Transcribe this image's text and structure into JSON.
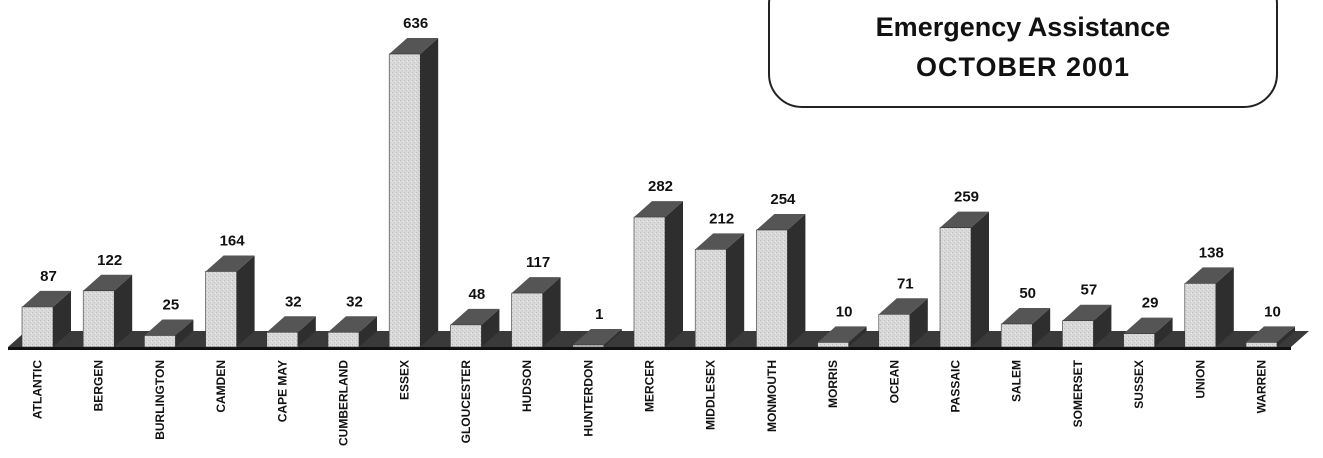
{
  "chart_data": {
    "type": "bar",
    "title": "Emergency Assistance",
    "subtitle": "OCTOBER 2001",
    "categories": [
      "ATLANTIC",
      "BERGEN",
      "BURLINGTON",
      "CAMDEN",
      "CAPE MAY",
      "CUMBERLAND",
      "ESSEX",
      "GLOUCESTER",
      "HUDSON",
      "HUNTERDON",
      "MERCER",
      "MIDDLESEX",
      "MONMOUTH",
      "MORRIS",
      "OCEAN",
      "PASSAIC",
      "SALEM",
      "SOMERSET",
      "SUSSEX",
      "UNION",
      "WARREN"
    ],
    "values": [
      87,
      122,
      25,
      164,
      32,
      32,
      636,
      48,
      117,
      1,
      282,
      212,
      254,
      10,
      71,
      259,
      50,
      57,
      29,
      138,
      10
    ],
    "ylim": [
      0,
      650
    ],
    "grid": false,
    "legend": "none",
    "colors": {
      "bar_front": "#d6d6d6",
      "bar_side": "#2e2e2e",
      "bar_top": "#555555",
      "floor": "#3a3a3a"
    }
  }
}
